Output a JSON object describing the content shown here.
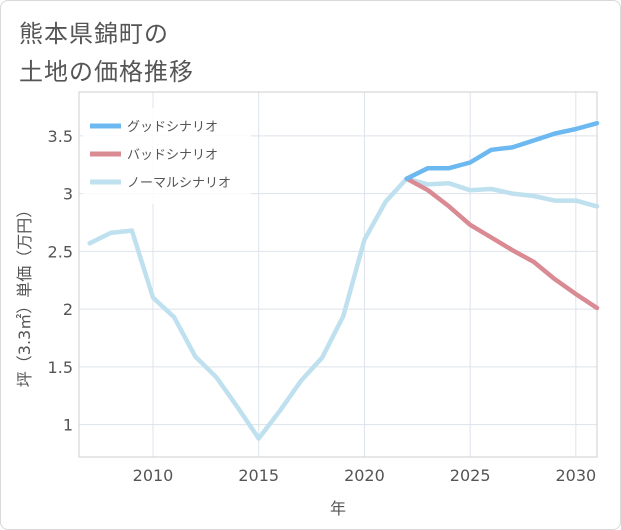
{
  "chart_data": {
    "type": "line",
    "title": "熊本県錦町の\n土地の価格推移",
    "xlabel": "年",
    "ylabel": "坪（3.3㎡）単価（万円）",
    "xlim": [
      2006.5,
      2031
    ],
    "ylim": [
      0.72,
      3.88
    ],
    "x_ticks": [
      2010,
      2015,
      2020,
      2025,
      2030
    ],
    "y_ticks": [
      1,
      1.5,
      2,
      2.5,
      3,
      3.5
    ],
    "x_tick_labels": [
      "2010",
      "2015",
      "2020",
      "2025",
      "2030"
    ],
    "y_tick_labels": [
      "1",
      "1.5",
      "2",
      "2.5",
      "3",
      "3.5"
    ],
    "grid": true,
    "legend_position": "top-left",
    "series": [
      {
        "name": "グッドシナリオ",
        "color": "#6cb8f0",
        "x": [
          2022,
          2023,
          2024,
          2025,
          2026,
          2027,
          2028,
          2029,
          2030,
          2031
        ],
        "values": [
          3.13,
          3.22,
          3.22,
          3.27,
          3.38,
          3.4,
          3.46,
          3.52,
          3.56,
          3.61
        ]
      },
      {
        "name": "バッドシナリオ",
        "color": "#d98a93",
        "x": [
          2022,
          2023,
          2024,
          2025,
          2026,
          2027,
          2028,
          2029,
          2030,
          2031
        ],
        "values": [
          3.13,
          3.03,
          2.89,
          2.73,
          2.62,
          2.51,
          2.41,
          2.26,
          2.13,
          2.01
        ]
      },
      {
        "name": "ノーマルシナリオ",
        "color": "#bfe0ee",
        "x": [
          2007,
          2008,
          2009,
          2010,
          2011,
          2012,
          2013,
          2014,
          2015,
          2016,
          2017,
          2018,
          2019,
          2020,
          2021,
          2022,
          2023,
          2024,
          2025,
          2026,
          2027,
          2028,
          2029,
          2030,
          2031
        ],
        "values": [
          2.57,
          2.66,
          2.68,
          2.1,
          1.93,
          1.59,
          1.41,
          1.15,
          0.88,
          1.12,
          1.38,
          1.58,
          1.94,
          2.6,
          2.93,
          3.13,
          3.08,
          3.09,
          3.03,
          3.04,
          3.0,
          2.98,
          2.94,
          2.94,
          2.89
        ]
      }
    ]
  }
}
